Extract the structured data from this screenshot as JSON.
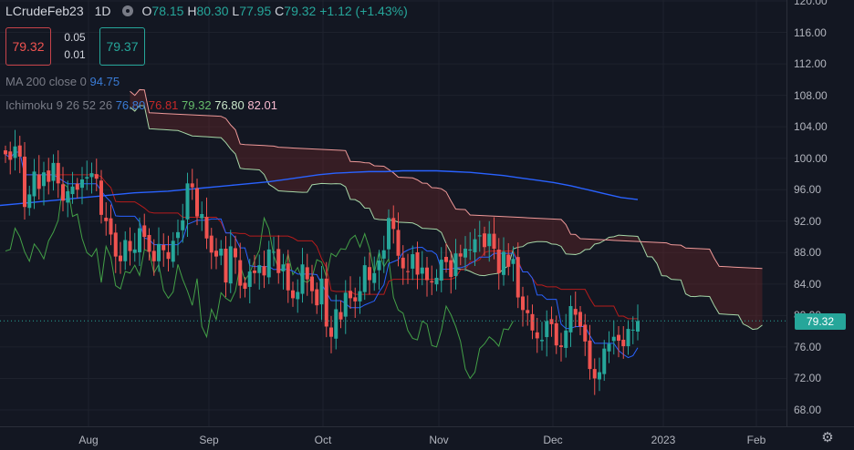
{
  "symbol": "LCrudeFeb23",
  "interval": "1D",
  "ohlc": {
    "o_label": "O",
    "o": "78.15",
    "h_label": "H",
    "h": "80.30",
    "l_label": "L",
    "l": "77.95",
    "c_label": "C",
    "c": "79.32",
    "change": "+1.12 (+1.43%)"
  },
  "trade": {
    "sell": "79.32",
    "buy": "79.37",
    "spread_top": "0.05",
    "spread_bottom": "0.01"
  },
  "ma": {
    "label": "MA 200 close 0",
    "value": "94.75"
  },
  "ichimoku": {
    "label": "Ichimoku 9 26 52 26",
    "v1": "76.80",
    "v2": "76.81",
    "v3": "79.32",
    "v4": "76.80",
    "v5": "82.01"
  },
  "last_price": "79.32",
  "colors": {
    "background": "#131722",
    "up": "#26a69a",
    "down": "#ef5350",
    "ma": "#2962ff",
    "conversion": "#2962ff",
    "base": "#b71c1c",
    "lagging": "#43a047",
    "span_a": "#a5d6a7",
    "span_b": "#ef9a9a"
  },
  "chart_data": {
    "type": "candlestick",
    "title": "LCrudeFeb23",
    "xlabel": "",
    "ylabel": "",
    "ylim": [
      66,
      122
    ],
    "y_ticks": [
      "120.00",
      "116.00",
      "112.00",
      "108.00",
      "104.00",
      "100.00",
      "96.00",
      "92.00",
      "88.00",
      "84.00",
      "80.00",
      "76.00",
      "72.00",
      "68.00"
    ],
    "x_ticks": [
      "Aug",
      "Sep",
      "Oct",
      "Nov",
      "Dec",
      "2023",
      "Feb"
    ],
    "last_price": 79.32,
    "closes": [
      100.5,
      99.8,
      101.5,
      100.2,
      93.8,
      95.4,
      98.3,
      96.1,
      98.2,
      97.0,
      99.4,
      96.8,
      94.6,
      95.8,
      96.4,
      96.0,
      97.3,
      97.6,
      98.1,
      97.4,
      92.8,
      92.0,
      90.3,
      87.5,
      86.9,
      89.6,
      88.2,
      88.4,
      91.1,
      90.0,
      88.1,
      86.9,
      89.1,
      88.3,
      87.2,
      89.5,
      90.6,
      92.1,
      96.8,
      96.3,
      92.6,
      92.9,
      89.8,
      88.0,
      87.5,
      88.5,
      84.2,
      88.8,
      87.4,
      83.8,
      83.4,
      85.6,
      85.4,
      86.4,
      85.1,
      88.4,
      88.1,
      85.4,
      86.5,
      83.2,
      82.2,
      83.0,
      86.5,
      84.6,
      83.1,
      81.3,
      84.7,
      78.6,
      77.3,
      80.8,
      79.5,
      82.9,
      82.2,
      81.8,
      83.1,
      86.4,
      84.5,
      85.4,
      87.0,
      88.3,
      92.4,
      91.0,
      87.6,
      86.0,
      85.6,
      87.8,
      85.2,
      86.1,
      84.5,
      84.2,
      84.8,
      87.1,
      86.8,
      84.9,
      87.9,
      87.5,
      88.5,
      88.4,
      89.7,
      90.2,
      88.7,
      90.4,
      88.5,
      85.4,
      88.1,
      86.2,
      87.2,
      82.3,
      80.7,
      80.3,
      78.1,
      77.1,
      76.9,
      79.3,
      78.9,
      76.2,
      76.0,
      78.1,
      81.2,
      80.1,
      78.6,
      76.7,
      73.2,
      72.0,
      72.8,
      75.8,
      76.4,
      77.3,
      76.8,
      76.1,
      78.3,
      78.2,
      79.3
    ],
    "ma200": [
      94.0,
      94.2,
      94.4,
      94.6,
      94.8,
      95.0,
      95.2,
      95.4,
      95.6,
      95.7,
      95.8,
      96.0,
      96.2,
      96.4,
      96.6,
      96.8,
      97.0,
      97.3,
      97.6,
      97.9,
      98.1,
      98.2,
      98.3,
      98.3,
      98.4,
      98.4,
      98.4,
      98.3,
      98.2,
      98.0,
      97.8,
      97.5,
      97.2,
      96.9,
      96.5,
      96.0,
      95.5,
      95.0,
      94.75
    ],
    "series_names": [
      "Candles",
      "MA 200",
      "Ichimoku"
    ]
  }
}
